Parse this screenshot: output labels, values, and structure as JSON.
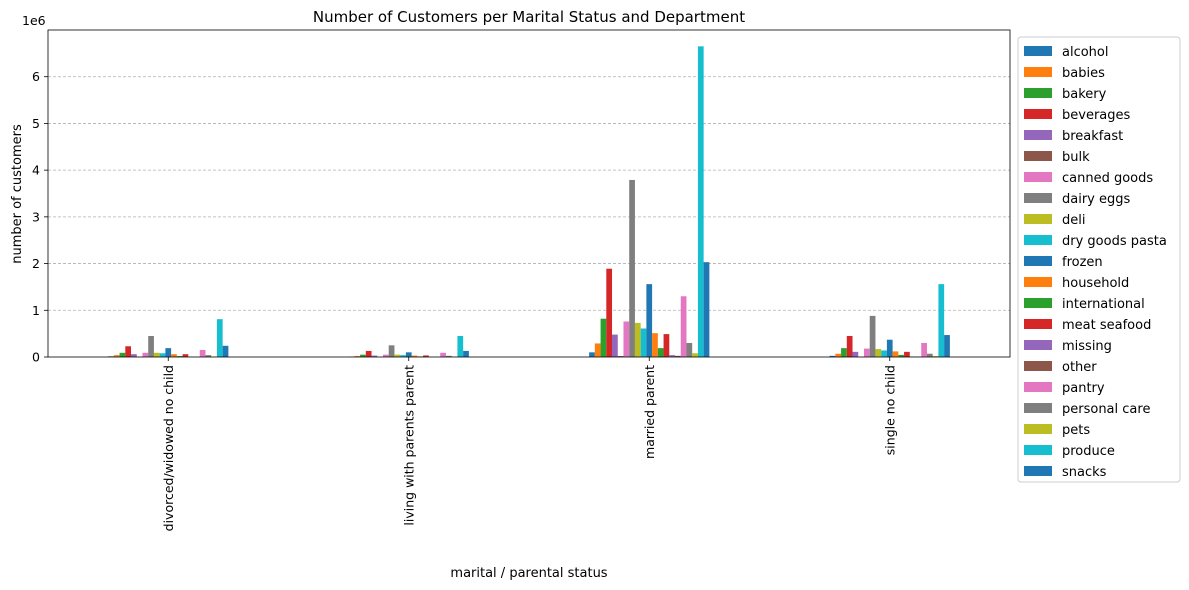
{
  "chart_data": {
    "type": "bar",
    "title": "Number of Customers per Marital Status and Department",
    "xlabel": "marital / parental status",
    "ylabel": "number of customers",
    "y_offset_label": "1e6",
    "ylim": [
      0,
      7000000
    ],
    "yticks": [
      0,
      1000000,
      2000000,
      3000000,
      4000000,
      5000000,
      6000000
    ],
    "ytick_labels": [
      "0",
      "1",
      "2",
      "3",
      "4",
      "5",
      "6"
    ],
    "grid": "horizontal dashed",
    "legend_position": "outside right",
    "categories": [
      "divorced/widowed no child",
      "living with parents parent",
      "married parent",
      "single no child"
    ],
    "series": [
      {
        "name": "alcohol",
        "color": "#1f77b4",
        "values": [
          15000,
          5000,
          100000,
          25000
        ]
      },
      {
        "name": "babies",
        "color": "#ff7f0e",
        "values": [
          40000,
          20000,
          290000,
          70000
        ]
      },
      {
        "name": "bakery",
        "color": "#2ca02c",
        "values": [
          90000,
          50000,
          820000,
          190000
        ]
      },
      {
        "name": "beverages",
        "color": "#d62728",
        "values": [
          230000,
          130000,
          1890000,
          450000
        ]
      },
      {
        "name": "breakfast",
        "color": "#9467bd",
        "values": [
          60000,
          30000,
          480000,
          110000
        ]
      },
      {
        "name": "bulk",
        "color": "#8c564b",
        "values": [
          3000,
          1500,
          20000,
          5000
        ]
      },
      {
        "name": "canned goods",
        "color": "#e377c2",
        "values": [
          90000,
          50000,
          760000,
          180000
        ]
      },
      {
        "name": "dairy eggs",
        "color": "#7f7f7f",
        "values": [
          450000,
          250000,
          3790000,
          880000
        ]
      },
      {
        "name": "deli",
        "color": "#bcbd22",
        "values": [
          90000,
          50000,
          730000,
          170000
        ]
      },
      {
        "name": "dry goods pasta",
        "color": "#17becf",
        "values": [
          80000,
          40000,
          610000,
          140000
        ]
      },
      {
        "name": "frozen",
        "color": "#1f77b4",
        "values": [
          190000,
          100000,
          1560000,
          370000
        ]
      },
      {
        "name": "household",
        "color": "#ff7f0e",
        "values": [
          60000,
          30000,
          510000,
          120000
        ]
      },
      {
        "name": "international",
        "color": "#2ca02c",
        "values": [
          20000,
          12000,
          190000,
          45000
        ]
      },
      {
        "name": "meat seafood",
        "color": "#d62728",
        "values": [
          60000,
          33000,
          490000,
          110000
        ]
      },
      {
        "name": "missing",
        "color": "#9467bd",
        "values": [
          5000,
          3000,
          40000,
          10000
        ]
      },
      {
        "name": "other",
        "color": "#8c564b",
        "values": [
          3000,
          2000,
          25000,
          6000
        ]
      },
      {
        "name": "pantry",
        "color": "#e377c2",
        "values": [
          150000,
          90000,
          1300000,
          300000
        ]
      },
      {
        "name": "personal care",
        "color": "#7f7f7f",
        "values": [
          40000,
          25000,
          300000,
          70000
        ]
      },
      {
        "name": "pets",
        "color": "#bcbd22",
        "values": [
          10000,
          6000,
          80000,
          20000
        ]
      },
      {
        "name": "produce",
        "color": "#17becf",
        "values": [
          810000,
          450000,
          6650000,
          1560000
        ]
      },
      {
        "name": "snacks",
        "color": "#1f77b4",
        "values": [
          240000,
          130000,
          2030000,
          470000
        ]
      }
    ]
  }
}
